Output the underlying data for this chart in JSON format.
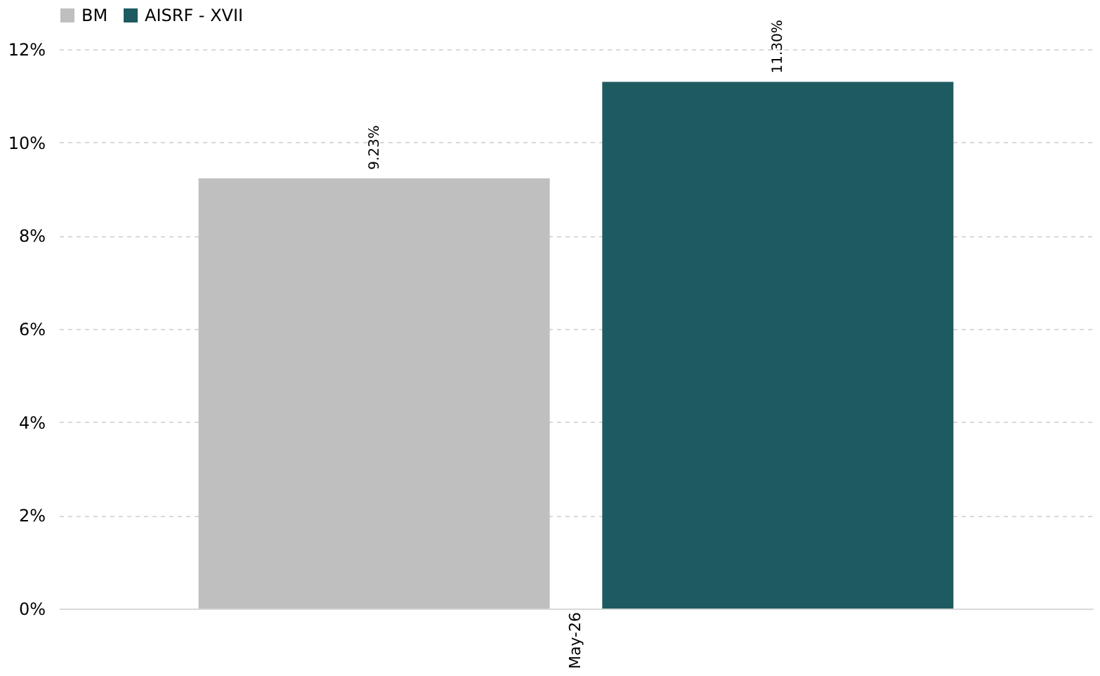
{
  "chart_data": {
    "type": "bar",
    "categories": [
      "May-26"
    ],
    "series": [
      {
        "name": "BM",
        "color": "#bfbfbf",
        "values": [
          9.23
        ],
        "value_labels": [
          "9.23%"
        ]
      },
      {
        "name": "AISRF - XVII",
        "color": "#1e5b60",
        "values": [
          11.3
        ],
        "value_labels": [
          "11.30%"
        ]
      }
    ],
    "ylim": [
      0,
      12
    ],
    "yticks": [
      {
        "value": 0,
        "label": "0%"
      },
      {
        "value": 2,
        "label": "2%"
      },
      {
        "value": 4,
        "label": "4%"
      },
      {
        "value": 6,
        "label": "6%"
      },
      {
        "value": 8,
        "label": "8%"
      },
      {
        "value": 10,
        "label": "10%"
      },
      {
        "value": 12,
        "label": "12%"
      }
    ],
    "grid": "y",
    "legend": "top"
  }
}
